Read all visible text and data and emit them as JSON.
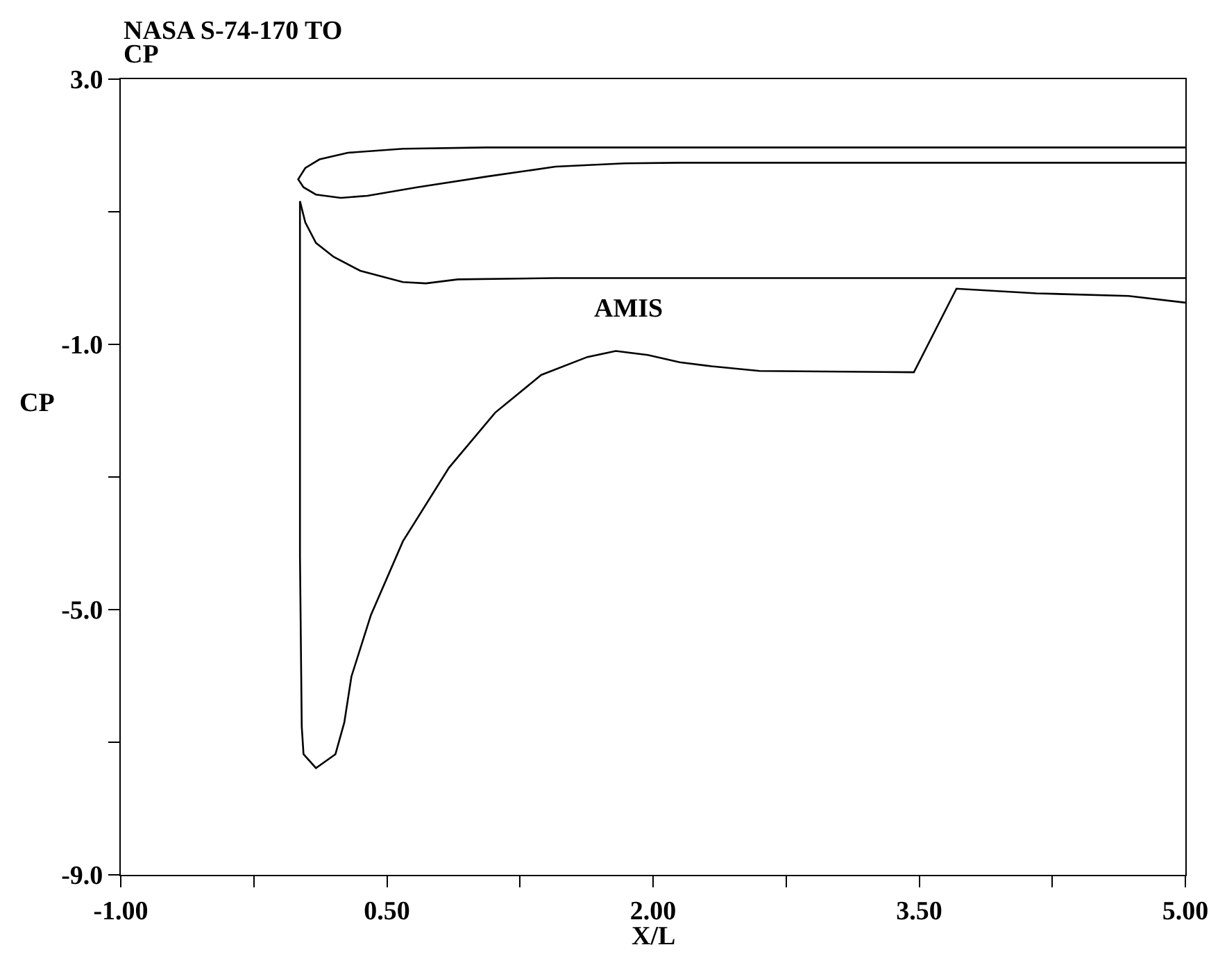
{
  "chart_data": {
    "type": "line",
    "title": "NASA S-74-170 TO",
    "subtitle": "CP",
    "xlabel": "X/L",
    "ylabel": "CP",
    "xlim": [
      -1.0,
      5.0
    ],
    "ylim": [
      -9.0,
      3.0
    ],
    "xticks": [
      {
        "value": -1.0,
        "label": "-1.00"
      },
      {
        "value": -0.25,
        "label": null
      },
      {
        "value": 0.5,
        "label": "0.50"
      },
      {
        "value": 1.25,
        "label": null
      },
      {
        "value": 2.0,
        "label": "2.00"
      },
      {
        "value": 2.75,
        "label": null
      },
      {
        "value": 3.5,
        "label": "3.50"
      },
      {
        "value": 4.25,
        "label": null
      },
      {
        "value": 5.0,
        "label": "5.00"
      }
    ],
    "yticks": [
      {
        "value": 3.0,
        "label": "3.0"
      },
      {
        "value": 1.0,
        "label": null
      },
      {
        "value": -1.0,
        "label": "-1.0"
      },
      {
        "value": -3.0,
        "label": null
      },
      {
        "value": -5.0,
        "label": "-5.0"
      },
      {
        "value": -7.0,
        "label": null
      },
      {
        "value": -9.0,
        "label": "-9.0"
      }
    ],
    "marker": "none",
    "line_style": "solid",
    "annotations": [
      "AMIS"
    ],
    "series": [
      {
        "color": "#000000",
        "x": [
          5.0,
          2.23,
          1.06,
          0.59,
          0.28,
          0.12,
          0.04,
          0.0,
          0.03,
          0.1,
          0.24,
          0.39,
          0.67,
          1.06,
          1.45,
          1.84,
          2.15,
          5.0
        ],
        "values": [
          1.97,
          1.97,
          1.97,
          1.95,
          1.89,
          1.79,
          1.66,
          1.49,
          1.37,
          1.26,
          1.21,
          1.24,
          1.37,
          1.53,
          1.68,
          1.73,
          1.74,
          1.74
        ]
      },
      {
        "color": "#000000",
        "x": [
          0.01,
          0.04,
          0.1,
          0.2,
          0.35,
          0.59,
          0.72,
          0.9,
          1.45,
          5.0
        ],
        "values": [
          1.16,
          0.84,
          0.53,
          0.32,
          0.11,
          -0.06,
          -0.08,
          -0.02,
          0.0,
          0.0
        ]
      },
      {
        "color": "#000000",
        "x": [
          0.01,
          0.01,
          0.01,
          0.02,
          0.03,
          0.1,
          0.21,
          0.26,
          0.3,
          0.41,
          0.59,
          0.85,
          1.11,
          1.37,
          1.63,
          1.79,
          1.97,
          2.15,
          2.33,
          2.6,
          3.47,
          3.71,
          4.16,
          4.68,
          5.0
        ],
        "values": [
          1.16,
          1.05,
          -4.18,
          -6.76,
          -7.18,
          -7.39,
          -7.18,
          -6.7,
          -6.01,
          -5.08,
          -3.97,
          -2.86,
          -2.03,
          -1.46,
          -1.19,
          -1.1,
          -1.16,
          -1.27,
          -1.33,
          -1.4,
          -1.42,
          -0.16,
          -0.23,
          -0.27,
          -0.37
        ]
      }
    ]
  }
}
